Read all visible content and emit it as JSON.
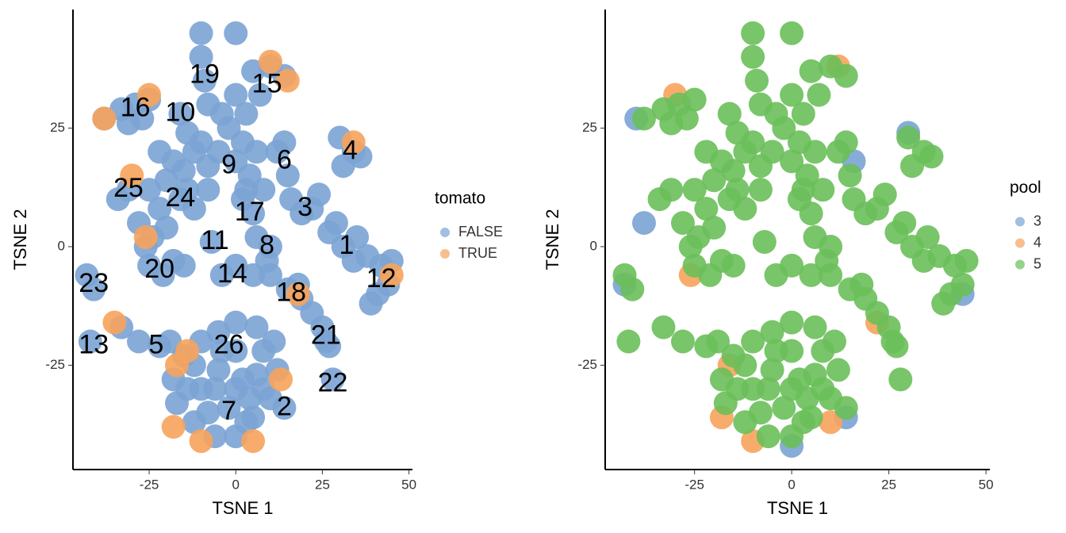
{
  "chart_data": [
    {
      "type": "scatter",
      "xlabel": "TSNE 1",
      "ylabel": "TSNE 2",
      "legend_title": "tomato",
      "legend": "right",
      "xlim": [
        -47,
        51
      ],
      "ylim": [
        -47,
        50
      ],
      "xticks": [
        -25,
        0,
        25,
        50
      ],
      "yticks": [
        -25,
        0,
        25
      ],
      "series": [
        {
          "name": "FALSE",
          "color": "#7ba3d4",
          "x": [
            -38,
            -33,
            -29,
            -25,
            -27,
            -31,
            -16,
            -14,
            -10,
            -10,
            -9,
            -8,
            0,
            5,
            10,
            14,
            7,
            3,
            -2,
            -5,
            0,
            4,
            -8,
            -12,
            -15,
            6,
            2,
            5,
            3,
            -20,
            -16,
            -22,
            -25,
            -31,
            -34,
            -28,
            -24,
            -20,
            -12,
            -8,
            12,
            15,
            16,
            14,
            19,
            22,
            24,
            30,
            34,
            31,
            36,
            27,
            31,
            34,
            29,
            38,
            35,
            42,
            44,
            41,
            45,
            39,
            6,
            10,
            9,
            -25,
            -21,
            -18,
            -15,
            -26,
            -4,
            0,
            5,
            10,
            15,
            19,
            22,
            25,
            26,
            18,
            -7,
            -43,
            -41,
            -42,
            -33,
            -28,
            -22,
            -19,
            -15,
            -10,
            -5,
            0,
            6,
            11,
            12,
            10,
            5,
            0,
            -6,
            -12,
            -17,
            -18,
            -5,
            2,
            -2,
            6,
            -10,
            0,
            14,
            28,
            27,
            -12,
            -8,
            4,
            8,
            -14,
            0,
            -4,
            8,
            -6,
            3,
            -14,
            -18,
            -22,
            -10,
            -4,
            0,
            2,
            8
          ],
          "values": [
            27,
            29,
            30,
            31,
            27,
            26,
            28,
            24,
            45,
            40,
            35,
            30,
            45,
            37,
            38,
            36,
            32,
            28,
            25,
            20,
            18,
            15,
            17,
            20,
            16,
            20,
            10,
            7,
            12,
            14,
            10,
            8,
            12,
            12,
            10,
            5,
            2,
            4,
            8,
            12,
            20,
            15,
            10,
            22,
            7,
            8,
            11,
            23,
            20,
            17,
            19,
            3,
            0,
            -3,
            5,
            -2,
            2,
            -4,
            -8,
            -10,
            -3,
            -12,
            2,
            0,
            -3,
            -4,
            -6,
            -3,
            -4,
            0,
            -6,
            -4,
            -6,
            -6,
            -9,
            -11,
            -14,
            -17,
            -20,
            -8,
            1,
            -6,
            -9,
            -20,
            -17,
            -20,
            -21,
            -20,
            -23,
            -20,
            -18,
            -16,
            -17,
            -20,
            -26,
            -32,
            -36,
            -40,
            -40,
            -37,
            -33,
            -28,
            -26,
            -28,
            -34,
            -27,
            -30,
            -22,
            -34,
            -28,
            -21,
            -25,
            -35,
            -32,
            -22,
            -30,
            -30,
            -22,
            -30,
            -30,
            -37,
            12,
            18,
            20,
            22,
            28,
            32,
            22,
            12
          ]
        },
        {
          "name": "TRUE",
          "color": "#f7a35c",
          "x": [
            -38,
            -25,
            10,
            15,
            -18,
            -10,
            5,
            -17,
            13,
            45,
            -35,
            -30,
            34,
            -26,
            18,
            -14
          ],
          "values": [
            27,
            32,
            39,
            35,
            -38,
            -41,
            -41,
            -25,
            -28,
            -6,
            -16,
            15,
            22,
            2,
            -10,
            -22
          ]
        }
      ],
      "annotations": [
        {
          "text": "1",
          "x": 32,
          "y": 0
        },
        {
          "text": "2",
          "x": 14,
          "y": -34
        },
        {
          "text": "3",
          "x": 20,
          "y": 8
        },
        {
          "text": "4",
          "x": 33,
          "y": 20
        },
        {
          "text": "5",
          "x": -23,
          "y": -21
        },
        {
          "text": "6",
          "x": 14,
          "y": 18
        },
        {
          "text": "7",
          "x": -2,
          "y": -35
        },
        {
          "text": "8",
          "x": 9,
          "y": 0
        },
        {
          "text": "9",
          "x": -2,
          "y": 17
        },
        {
          "text": "10",
          "x": -16,
          "y": 28
        },
        {
          "text": "11",
          "x": -6,
          "y": 1
        },
        {
          "text": "12",
          "x": 42,
          "y": -7
        },
        {
          "text": "13",
          "x": -41,
          "y": -21
        },
        {
          "text": "14",
          "x": -1,
          "y": -6
        },
        {
          "text": "15",
          "x": 9,
          "y": 34
        },
        {
          "text": "16",
          "x": -29,
          "y": 29
        },
        {
          "text": "17",
          "x": 4,
          "y": 7
        },
        {
          "text": "18",
          "x": 16,
          "y": -10
        },
        {
          "text": "19",
          "x": -9,
          "y": 36
        },
        {
          "text": "20",
          "x": -22,
          "y": -5
        },
        {
          "text": "21",
          "x": 26,
          "y": -19
        },
        {
          "text": "22",
          "x": 28,
          "y": -29
        },
        {
          "text": "23",
          "x": -41,
          "y": -8
        },
        {
          "text": "24",
          "x": -16,
          "y": 10
        },
        {
          "text": "25",
          "x": -31,
          "y": 12
        },
        {
          "text": "26",
          "x": -2,
          "y": -21
        }
      ]
    },
    {
      "type": "scatter",
      "xlabel": "TSNE 1",
      "ylabel": "TSNE 2",
      "legend_title": "pool",
      "legend": "right",
      "xlim": [
        -48,
        51
      ],
      "ylim": [
        -47,
        50
      ],
      "xticks": [
        -25,
        0,
        25,
        50
      ],
      "yticks": [
        -25,
        0,
        25
      ],
      "series": [
        {
          "name": "3",
          "color": "#7ba3d4",
          "x": [
            -40,
            30,
            44,
            -38,
            -43,
            0,
            14,
            16
          ],
          "values": [
            27,
            24,
            -10,
            5,
            -8,
            -42,
            -36,
            18
          ]
        },
        {
          "name": "4",
          "color": "#f7a35c",
          "x": [
            -18,
            -16,
            -10,
            10,
            -30,
            22,
            -26,
            12
          ],
          "values": [
            -36,
            -25,
            -41,
            -37,
            32,
            -16,
            -6,
            38
          ]
        },
        {
          "name": "5",
          "color": "#6abf5a",
          "x": [
            -38,
            -33,
            -29,
            -25,
            -27,
            -31,
            -16,
            -14,
            -10,
            -10,
            -9,
            -8,
            0,
            5,
            10,
            14,
            7,
            3,
            -2,
            -5,
            0,
            4,
            -8,
            -12,
            -15,
            6,
            2,
            5,
            3,
            -20,
            -16,
            -22,
            -25,
            -31,
            -34,
            -28,
            -24,
            -20,
            -12,
            -8,
            12,
            15,
            16,
            14,
            19,
            22,
            24,
            30,
            34,
            31,
            36,
            27,
            31,
            34,
            29,
            38,
            35,
            42,
            44,
            41,
            45,
            39,
            6,
            10,
            9,
            -25,
            -21,
            -18,
            -15,
            -26,
            -4,
            0,
            5,
            10,
            15,
            19,
            22,
            25,
            26,
            18,
            -7,
            -43,
            -41,
            -42,
            -33,
            -28,
            -22,
            -19,
            -15,
            -10,
            -5,
            0,
            6,
            11,
            12,
            10,
            5,
            0,
            -6,
            -12,
            -17,
            -18,
            -5,
            2,
            -2,
            6,
            -10,
            0,
            14,
            28,
            27,
            -12,
            -8,
            4,
            8,
            -14,
            0,
            -4,
            8,
            -6,
            3,
            -14,
            -18,
            -22,
            -10,
            -4,
            0,
            2,
            8
          ],
          "values": [
            27,
            29,
            30,
            31,
            27,
            26,
            28,
            24,
            45,
            40,
            35,
            30,
            45,
            37,
            38,
            36,
            32,
            28,
            25,
            20,
            18,
            15,
            17,
            20,
            16,
            20,
            10,
            7,
            12,
            14,
            10,
            8,
            12,
            12,
            10,
            5,
            2,
            4,
            8,
            12,
            20,
            15,
            10,
            22,
            7,
            8,
            11,
            23,
            20,
            17,
            19,
            3,
            0,
            -3,
            5,
            -2,
            2,
            -4,
            -8,
            -10,
            -3,
            -12,
            2,
            0,
            -3,
            -4,
            -6,
            -3,
            -4,
            0,
            -6,
            -4,
            -6,
            -6,
            -9,
            -11,
            -14,
            -17,
            -20,
            -8,
            1,
            -6,
            -9,
            -20,
            -17,
            -20,
            -21,
            -20,
            -23,
            -20,
            -18,
            -16,
            -17,
            -20,
            -26,
            -32,
            -36,
            -40,
            -40,
            -37,
            -33,
            -28,
            -26,
            -28,
            -34,
            -27,
            -30,
            -22,
            -34,
            -28,
            -21,
            -25,
            -35,
            -32,
            -22,
            -30,
            -30,
            -22,
            -30,
            -30,
            -37,
            12,
            18,
            20,
            22,
            28,
            32,
            22,
            12
          ]
        }
      ]
    }
  ]
}
